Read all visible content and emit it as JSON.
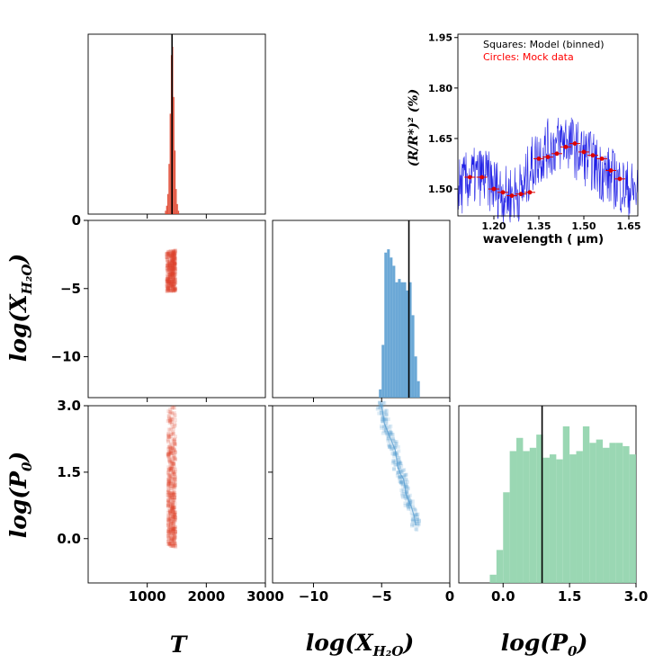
{
  "chart_data": [
    {
      "type": "histogram",
      "panel": "T marginal",
      "xlabel": "T",
      "xlim": [
        0,
        3000
      ],
      "xticks": [
        "1000",
        "2000",
        "3000"
      ],
      "truth": 1420,
      "bin_edges": [
        1300,
        1320,
        1340,
        1360,
        1380,
        1400,
        1420,
        1440,
        1460,
        1480,
        1500,
        1520,
        1540
      ],
      "counts": [
        0.02,
        0.05,
        0.12,
        0.3,
        0.6,
        0.95,
        1.0,
        0.7,
        0.38,
        0.15,
        0.06,
        0.02
      ],
      "color": "#e0452d"
    },
    {
      "type": "scatter",
      "panel": "T vs log(X_H2O)",
      "xlim": [
        0,
        3000
      ],
      "ylim": [
        -13,
        0
      ],
      "yticks": [
        "0",
        "−5",
        "−10"
      ],
      "x_range": [
        1330,
        1480
      ],
      "y_range": [
        -5.2,
        -2.2
      ],
      "color": "#e0452d"
    },
    {
      "type": "histogram",
      "panel": "log(X_H2O) marginal",
      "xlim": [
        -13,
        0
      ],
      "truth": -3.0,
      "bin_edges": [
        -5.2,
        -5.0,
        -4.8,
        -4.6,
        -4.4,
        -4.2,
        -4.0,
        -3.8,
        -3.6,
        -3.4,
        -3.2,
        -3.0,
        -2.8,
        -2.6,
        -2.4,
        -2.2
      ],
      "counts": [
        0.05,
        0.32,
        0.88,
        0.9,
        0.85,
        0.8,
        0.7,
        0.72,
        0.7,
        0.7,
        0.65,
        0.7,
        0.5,
        0.25,
        0.1
      ],
      "color": "#5b9fd1"
    },
    {
      "type": "scatter",
      "panel": "T vs log(P0)",
      "xlim": [
        0,
        3000
      ],
      "ylim": [
        -1,
        3
      ],
      "yticks": [
        "3.0",
        "1.5",
        "0.0"
      ],
      "x_range": [
        1350,
        1480
      ],
      "y_range": [
        -0.2,
        3.0
      ],
      "color": "#e0452d"
    },
    {
      "type": "scatter",
      "panel": "log(X_H2O) vs log(P0)",
      "xlim": [
        -13,
        0
      ],
      "xticks": [
        "−10",
        "−5",
        "0"
      ],
      "ylim": [
        -1,
        3
      ],
      "points": [
        [
          -5.0,
          3.0
        ],
        [
          -4.9,
          2.8
        ],
        [
          -4.8,
          2.6
        ],
        [
          -4.6,
          2.45
        ],
        [
          -4.4,
          2.3
        ],
        [
          -4.2,
          2.15
        ],
        [
          -4.0,
          2.0
        ],
        [
          -3.9,
          1.8
        ],
        [
          -3.8,
          1.6
        ],
        [
          -3.6,
          1.45
        ],
        [
          -3.4,
          1.35
        ],
        [
          -3.3,
          1.2
        ],
        [
          -3.2,
          1.0
        ],
        [
          -3.0,
          0.85
        ],
        [
          -2.8,
          0.7
        ],
        [
          -2.6,
          0.5
        ],
        [
          -2.5,
          0.3
        ]
      ],
      "color": "#5b9fd1"
    },
    {
      "type": "histogram",
      "panel": "log(P0) marginal",
      "xlabel": "log(P0)",
      "xlim": [
        -1,
        3
      ],
      "xticks": [
        "0.0",
        "1.5",
        "3.0"
      ],
      "truth": 0.88,
      "bin_edges": [
        -0.3,
        -0.15,
        0.0,
        0.15,
        0.3,
        0.45,
        0.6,
        0.75,
        0.9,
        1.05,
        1.2,
        1.35,
        1.5,
        1.65,
        1.8,
        1.95,
        2.1,
        2.25,
        2.4,
        2.55,
        2.7,
        2.85,
        3.0
      ],
      "counts": [
        0.05,
        0.2,
        0.55,
        0.8,
        0.88,
        0.8,
        0.82,
        0.9,
        0.76,
        0.78,
        0.75,
        0.95,
        0.78,
        0.8,
        0.95,
        0.85,
        0.87,
        0.82,
        0.85,
        0.85,
        0.83,
        0.78
      ],
      "color": "#8fd3ab"
    },
    {
      "type": "line",
      "panel": "inset spectrum",
      "title": "",
      "xlabel": "wavelength ( μm)",
      "ylabel": "(R/R*)² (%)",
      "xlim": [
        1.08,
        1.68
      ],
      "ylim": [
        1.42,
        1.96
      ],
      "xticks": [
        1.2,
        1.35,
        1.5,
        1.65
      ],
      "xtick_labels": [
        "1.20",
        "1.35",
        "1.50",
        "1.65"
      ],
      "yticks": [
        1.5,
        1.65,
        1.8,
        1.95
      ],
      "ytick_labels": [
        "1.50",
        "1.65",
        "1.80",
        "1.95"
      ],
      "legend": [
        "Squares: Model (binned)",
        "Circles: Mock data"
      ],
      "model_curve": {
        "x": [
          1.08,
          1.12,
          1.16,
          1.2,
          1.24,
          1.28,
          1.3,
          1.32,
          1.35,
          1.38,
          1.41,
          1.44,
          1.47,
          1.5,
          1.53,
          1.56,
          1.6,
          1.64,
          1.68
        ],
        "y": [
          1.5,
          1.53,
          1.54,
          1.51,
          1.48,
          1.49,
          1.5,
          1.56,
          1.6,
          1.62,
          1.63,
          1.65,
          1.62,
          1.6,
          1.58,
          1.55,
          1.53,
          1.5,
          1.49
        ]
      },
      "binned_points": {
        "x": [
          1.12,
          1.16,
          1.2,
          1.23,
          1.26,
          1.29,
          1.32,
          1.35,
          1.38,
          1.41,
          1.44,
          1.47,
          1.5,
          1.53,
          1.56,
          1.59,
          1.62
        ],
        "y": [
          1.535,
          1.535,
          1.5,
          1.49,
          1.48,
          1.485,
          1.49,
          1.59,
          1.595,
          1.605,
          1.625,
          1.635,
          1.61,
          1.6,
          1.59,
          1.555,
          1.53
        ]
      },
      "colors": {
        "noise": "#1f1fe6",
        "points": "#dd0000",
        "legend_model": "#000000",
        "legend_data": "#ff0000"
      }
    }
  ],
  "labels": {
    "xlabel_T": "T",
    "xlabel_X": "log(X",
    "xlabel_X_sub": "H₂O",
    "xlabel_X_close": ")",
    "xlabel_P": "log(P",
    "xlabel_P_sub": "0",
    "xlabel_P_close": ")",
    "ylabel_X": "log(X",
    "ylabel_X_sub": "H₂O",
    "ylabel_X_close": ")",
    "ylabel_P": "log(P",
    "ylabel_P_sub": "0",
    "ylabel_P_close": ")"
  }
}
